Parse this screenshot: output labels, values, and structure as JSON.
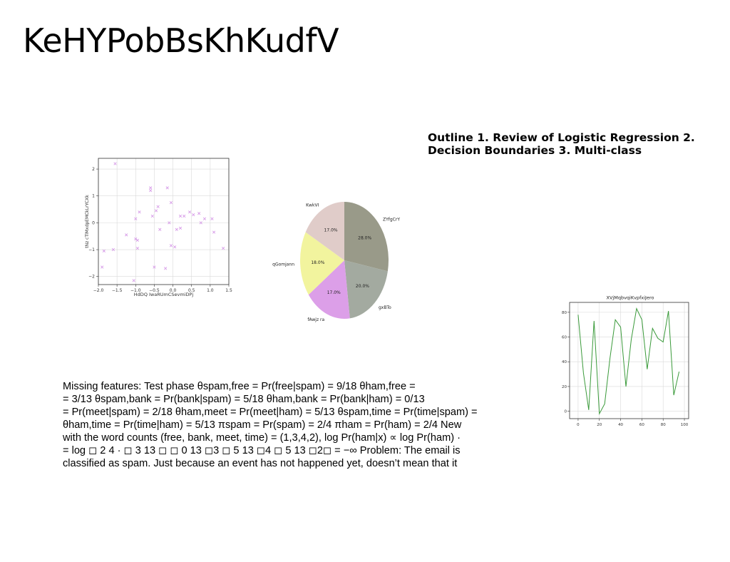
{
  "slide": {
    "title": "KeHYPobBsKhKudfV",
    "outline": "Outline 1. Review of Logistic Regression 2. Decision Boundaries 3. Multi-class",
    "body_lines": [
      "Missing features: Test phase θspam,free = Pr(free|spam) = 9/18 θham,free =",
      "= 3/13 θspam,bank = Pr(bank|spam) = 5/18 θham,bank = Pr(bank|ham) = 0/13",
      "= Pr(meet|spam) = 2/18 θham,meet = Pr(meet|ham) = 5/13 θspam,time = Pr(time|spam) =",
      "θham,time = Pr(time|ham) = 5/13 πspam = Pr(spam) = 2/4 πham = Pr(ham) = 2/4 New",
      "with the word counts (free, bank, meet, time) = (1,3,4,2), log Pr(ham|x) ∝ log Pr(ham) ·",
      "= log ◻ 2 4 · ◻ 3 13 ◻ ◻ 0 13 ◻3 ◻ 5 13 ◻4 ◻ 5 13 ◻2◻ = −∞ Problem: The email is",
      "classified as spam. Just because an event has not happened yet, doesn’t mean that it"
    ]
  },
  "chart_data": [
    {
      "type": "scatter",
      "xlabel": "HdDQ IwaRUmCSevmiDPj",
      "ylabel": "tNz cTlMxdpEMCkLrYCXk",
      "xlim": [
        -2.0,
        1.5
      ],
      "ylim": [
        -2.3,
        2.4
      ],
      "xticks": [
        -2.0,
        -1.5,
        -1.0,
        -0.5,
        0.0,
        0.5,
        1.0,
        1.5
      ],
      "xtick_labels": [
        "−2.0",
        "−1.5",
        "−1.0",
        "−0.5",
        "0.0",
        "0.5",
        "1.0",
        "1.5"
      ],
      "yticks": [
        -2,
        -1,
        0,
        1,
        2
      ],
      "ytick_labels": [
        "−2",
        "−1",
        "0",
        "1",
        "2"
      ],
      "grid": true,
      "marker": "x",
      "color": "#d79ce8",
      "points": [
        [
          -1.55,
          2.2
        ],
        [
          -0.6,
          1.3
        ],
        [
          -0.6,
          1.2
        ],
        [
          -0.15,
          1.3
        ],
        [
          -0.05,
          0.75
        ],
        [
          -0.4,
          0.6
        ],
        [
          -0.45,
          0.45
        ],
        [
          -0.9,
          0.4
        ],
        [
          0.45,
          0.4
        ],
        [
          0.55,
          0.3
        ],
        [
          0.7,
          0.35
        ],
        [
          0.3,
          0.25
        ],
        [
          0.2,
          0.25
        ],
        [
          -0.55,
          0.25
        ],
        [
          -1.0,
          0.15
        ],
        [
          0.85,
          0.15
        ],
        [
          1.05,
          0.15
        ],
        [
          0.75,
          0.0
        ],
        [
          -0.1,
          0.0
        ],
        [
          0.2,
          -0.2
        ],
        [
          0.1,
          -0.25
        ],
        [
          -0.35,
          -0.25
        ],
        [
          1.1,
          -0.35
        ],
        [
          -1.25,
          -0.45
        ],
        [
          -1.0,
          -0.6
        ],
        [
          -0.95,
          -0.65
        ],
        [
          -0.05,
          -0.85
        ],
        [
          0.05,
          -0.9
        ],
        [
          -0.95,
          -0.95
        ],
        [
          -1.6,
          -1.0
        ],
        [
          -1.85,
          -1.05
        ],
        [
          1.35,
          -0.95
        ],
        [
          -0.5,
          -1.65
        ],
        [
          -0.2,
          -1.7
        ],
        [
          -1.9,
          -1.65
        ],
        [
          -1.05,
          -2.15
        ]
      ]
    },
    {
      "type": "pie",
      "slices": [
        {
          "label": "ZYfgCrY",
          "value": 28.0,
          "pct_label": "28.0%",
          "color": "#999a89"
        },
        {
          "label": "gxBTo",
          "value": 20.0,
          "pct_label": "20.0%",
          "color": "#a3aaa0"
        },
        {
          "label": "fAwjz ra",
          "value": 17.0,
          "pct_label": "17.0%",
          "color": "#dc9fe8"
        },
        {
          "label": "qGomjann",
          "value": 18.0,
          "pct_label": "18.0%",
          "color": "#f2f49e"
        },
        {
          "label": "KwkVI",
          "value": 17.0,
          "pct_label": "17.0%",
          "color": "#e0ccc9"
        }
      ]
    },
    {
      "type": "line",
      "title": "XVjMqbvqiKvpfxiJero",
      "xlim": [
        -8,
        104
      ],
      "ylim": [
        -6,
        88
      ],
      "xticks": [
        0,
        20,
        40,
        60,
        80,
        100
      ],
      "xtick_labels": [
        "0",
        "20",
        "40",
        "60",
        "80",
        "100"
      ],
      "yticks": [
        0,
        20,
        40,
        60,
        80
      ],
      "ytick_labels": [
        "0",
        "20",
        "40",
        "60",
        "80"
      ],
      "grid": true,
      "color": "#3a9a3a",
      "x": [
        0,
        5,
        10,
        15,
        20,
        25,
        30,
        35,
        40,
        45,
        50,
        55,
        60,
        65,
        70,
        75,
        80,
        85,
        90,
        95,
        100
      ],
      "y": [
        78,
        31,
        1,
        73,
        -2,
        6,
        43,
        74,
        68,
        20,
        58,
        83,
        74,
        34,
        67,
        59,
        56,
        81,
        13,
        32,
        null
      ]
    }
  ]
}
